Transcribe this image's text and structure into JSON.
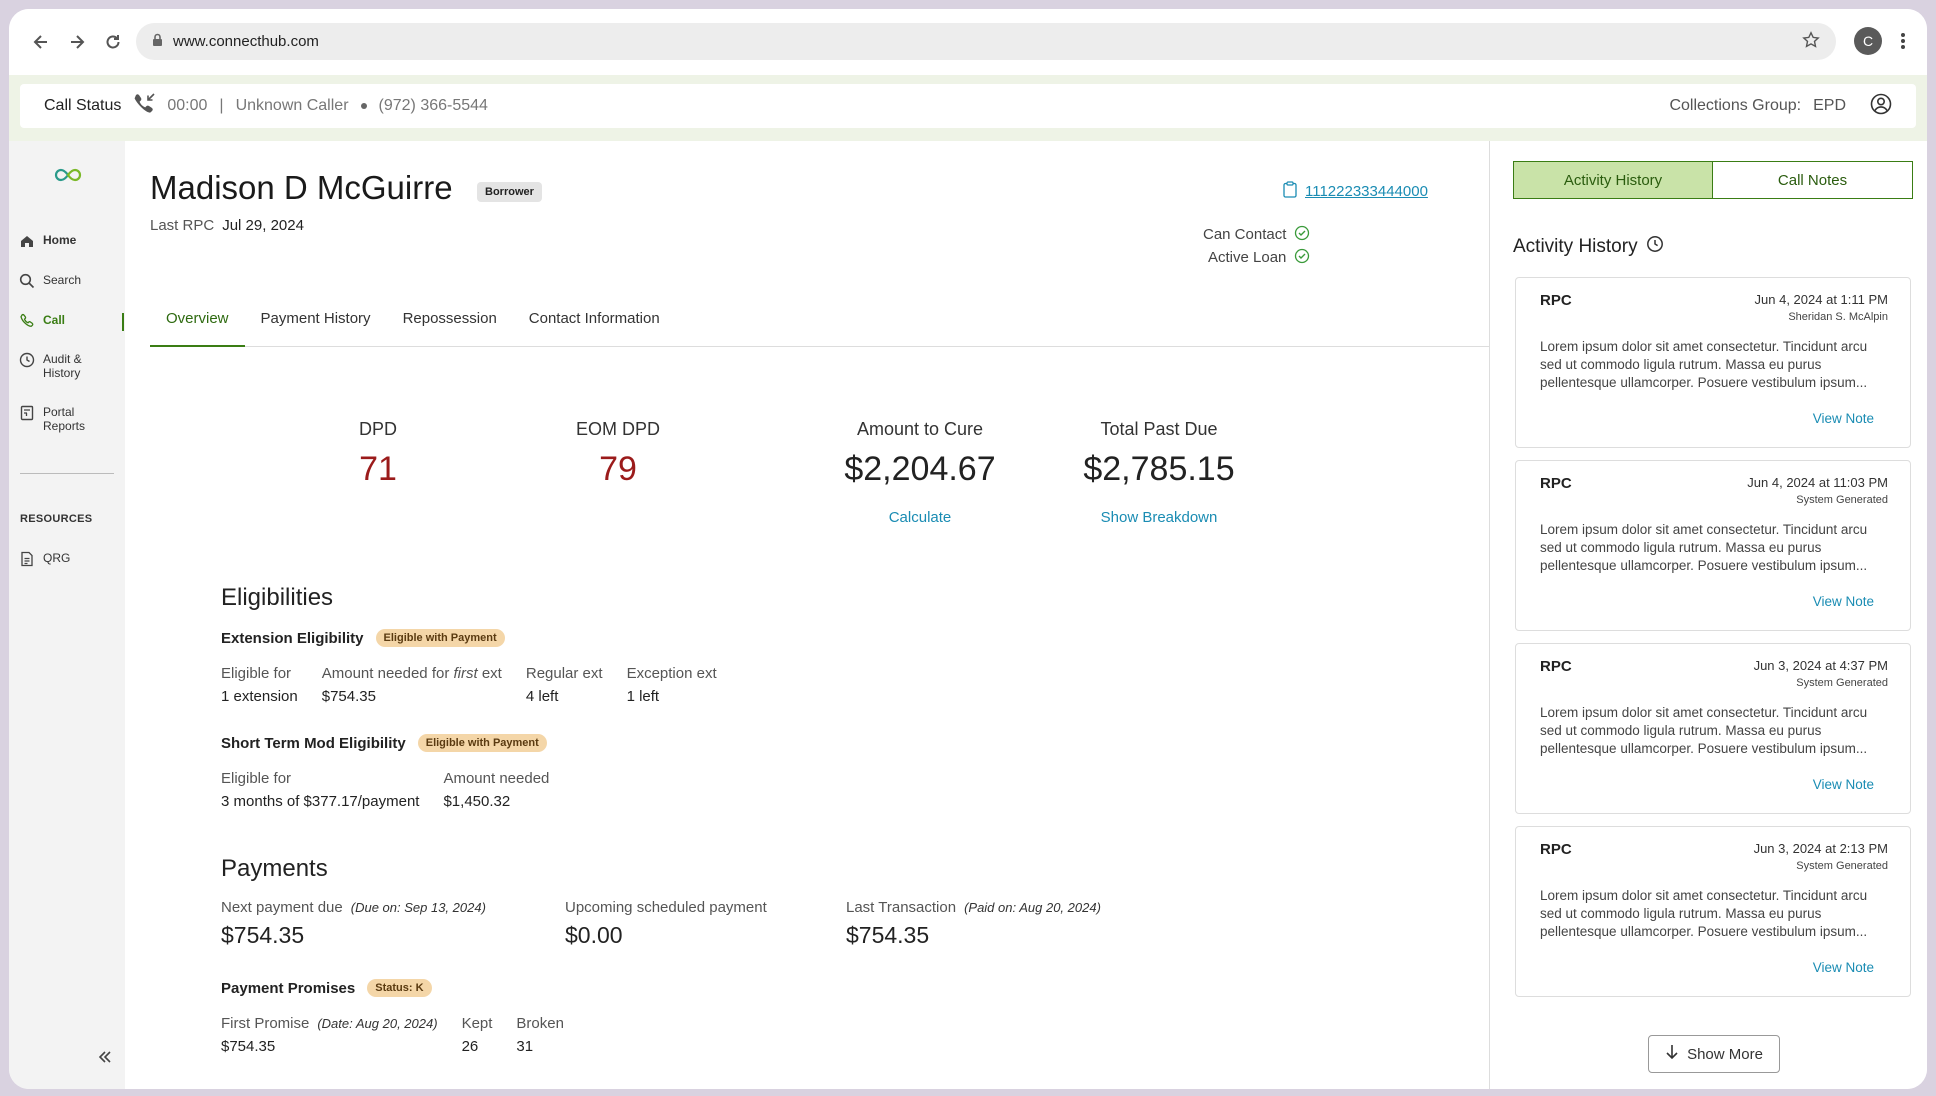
{
  "browser": {
    "url": "www.connecthub.com",
    "profile_initial": "C"
  },
  "call_status": {
    "title": "Call Status",
    "timer": "00:00",
    "separator": "|",
    "caller": "Unknown Caller",
    "phone": "(972) 366-5544",
    "group_label": "Collections Group:",
    "group_value": "EPD"
  },
  "sidebar": {
    "items": [
      {
        "label": "Home"
      },
      {
        "label": "Search"
      },
      {
        "label": "Call"
      },
      {
        "label": "Audit &",
        "label2": "History"
      },
      {
        "label": "Portal",
        "label2": "Reports"
      }
    ],
    "resources_title": "RESOURCES",
    "resources": [
      {
        "label": "QRG"
      }
    ]
  },
  "customer": {
    "name": "Madison D McGuirre",
    "badge": "Borrower",
    "last_rpc_label": "Last RPC",
    "last_rpc_value": "Jul 29, 2024",
    "account_number": "111222333444000",
    "statuses": [
      "Can Contact",
      "Active Loan"
    ]
  },
  "tabs": [
    "Overview",
    "Payment History",
    "Repossession",
    "Contact Information"
  ],
  "metrics": [
    {
      "label": "DPD",
      "value": "71"
    },
    {
      "label": "EOM DPD",
      "value": "79"
    },
    {
      "label": "Amount to Cure",
      "value": "$2,204.67",
      "link": "Calculate"
    },
    {
      "label": "Total Past Due",
      "value": "$2,785.15",
      "link": "Show Breakdown"
    }
  ],
  "eligibilities": {
    "title": "Eligibilities",
    "extension": {
      "title": "Extension Eligibility",
      "tag": "Eligible with Payment",
      "fields": [
        {
          "label": "Eligible for",
          "value": "1 extension"
        },
        {
          "label_pre": "Amount needed for ",
          "label_em": "first",
          "label_post": " ext",
          "value": "$754.35"
        },
        {
          "label": "Regular ext",
          "value": "4 left"
        },
        {
          "label": "Exception ext",
          "value": "1 left"
        }
      ]
    },
    "short_term": {
      "title": "Short Term Mod Eligibility",
      "tag": "Eligible with Payment",
      "fields": [
        {
          "label": "Eligible for",
          "value": "3 months of $377.17/payment"
        },
        {
          "label": "Amount needed",
          "value": "$1,450.32"
        }
      ]
    }
  },
  "payments": {
    "title": "Payments",
    "fields": [
      {
        "label": "Next payment due",
        "note": "(Due on: Sep 13, 2024)",
        "value": "$754.35"
      },
      {
        "label": "Upcoming scheduled payment",
        "note": "",
        "value": "$0.00"
      },
      {
        "label": "Last Transaction",
        "note": "(Paid on: Aug 20, 2024)",
        "value": "$754.35"
      }
    ],
    "promises": {
      "title": "Payment Promises",
      "tag": "Status: K",
      "fields": [
        {
          "label": "First Promise",
          "note": "(Date: Aug 20, 2024)",
          "value": "$754.35"
        },
        {
          "label": "Kept",
          "value": "26"
        },
        {
          "label": "Broken",
          "value": "31"
        }
      ]
    }
  },
  "right_panel": {
    "tabs": [
      "Activity History",
      "Call Notes"
    ],
    "title": "Activity History",
    "cards": [
      {
        "type": "RPC",
        "date": "Jun 4, 2024 at 1:11 PM",
        "author": "Sheridan S. McAlpin",
        "body": "Lorem ipsum dolor sit amet consectetur. Tincidunt arcu sed ut commodo ligula rutrum. Massa eu purus pellentesque ullamcorper. Posuere vestibulum ipsum...",
        "link": "View Note"
      },
      {
        "type": "RPC",
        "date": "Jun 4, 2024 at 11:03 PM",
        "author": "System Generated",
        "body": "Lorem ipsum dolor sit amet consectetur. Tincidunt arcu sed ut commodo ligula rutrum. Massa eu purus pellentesque ullamcorper. Posuere vestibulum ipsum...",
        "link": "View Note"
      },
      {
        "type": "RPC",
        "date": "Jun 3, 2024 at 4:37 PM",
        "author": "System Generated",
        "body": "Lorem ipsum dolor sit amet consectetur. Tincidunt arcu sed ut commodo ligula rutrum. Massa eu purus pellentesque ullamcorper. Posuere vestibulum ipsum...",
        "link": "View Note"
      },
      {
        "type": "RPC",
        "date": "Jun 3, 2024 at 2:13 PM",
        "author": "System Generated",
        "body": "Lorem ipsum dolor sit amet consectetur. Tincidunt arcu sed ut commodo ligula rutrum. Massa eu purus pellentesque ullamcorper. Posuere vestibulum ipsum...",
        "link": "View Note"
      }
    ],
    "show_more": "Show More"
  },
  "colors": {
    "accent_green": "#3a7d14",
    "accent_green_light": "#c9e3a8",
    "link_blue": "#1a8cb3",
    "dpd_red": "#9b1b1b",
    "tag_orange": "#f4d6a8"
  }
}
